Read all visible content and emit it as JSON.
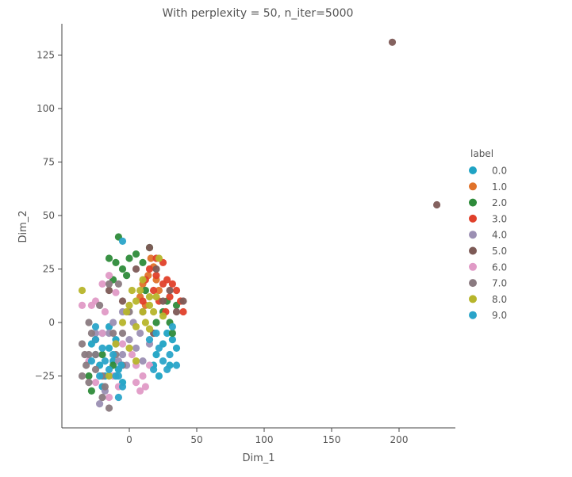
{
  "chart_data": {
    "type": "scatter",
    "title": "With perplexity = 50, n_iter=5000",
    "xlabel": "Dim_1",
    "ylabel": "Dim_2",
    "xlim": [
      -50,
      240
    ],
    "ylim": [
      -48,
      142
    ],
    "xticks": [
      0,
      50,
      100,
      150,
      200
    ],
    "yticks": [
      -25,
      0,
      25,
      50,
      75,
      100,
      125
    ],
    "grid": false,
    "legend": {
      "title": "label",
      "placement": "right"
    },
    "series": [
      {
        "name": "0.0",
        "color": "#1fa3c4",
        "points": [
          [
            -28,
            -10
          ],
          [
            -25,
            -15
          ],
          [
            -22,
            -20
          ],
          [
            -20,
            -5
          ],
          [
            -18,
            -25
          ],
          [
            -15,
            -12
          ],
          [
            -12,
            -18
          ],
          [
            -10,
            -8
          ],
          [
            -8,
            -22
          ],
          [
            -5,
            -28
          ],
          [
            -20,
            -30
          ],
          [
            -15,
            -2
          ],
          [
            20,
            -15
          ],
          [
            25,
            -10
          ],
          [
            30,
            -20
          ],
          [
            28,
            -5
          ],
          [
            35,
            -12
          ],
          [
            22,
            -25
          ],
          [
            32,
            -8
          ],
          [
            18,
            -20
          ]
        ]
      },
      {
        "name": "1.0",
        "color": "#e0722a",
        "points": [
          [
            10,
            18
          ],
          [
            14,
            22
          ],
          [
            18,
            26
          ],
          [
            22,
            15
          ],
          [
            8,
            12
          ],
          [
            16,
            30
          ],
          [
            12,
            8
          ],
          [
            20,
            20
          ]
        ]
      },
      {
        "name": "2.0",
        "color": "#2e8b3a",
        "points": [
          [
            -15,
            30
          ],
          [
            -10,
            28
          ],
          [
            -5,
            25
          ],
          [
            0,
            30
          ],
          [
            5,
            32
          ],
          [
            10,
            28
          ],
          [
            -12,
            20
          ],
          [
            -2,
            22
          ],
          [
            25,
            5
          ],
          [
            30,
            0
          ],
          [
            32,
            -5
          ],
          [
            28,
            10
          ],
          [
            15,
            35
          ],
          [
            -8,
            40
          ],
          [
            12,
            15
          ],
          [
            -28,
            -32
          ],
          [
            20,
            0
          ],
          [
            35,
            8
          ],
          [
            -20,
            -15
          ],
          [
            -30,
            -25
          ],
          [
            -12,
            -20
          ]
        ]
      },
      {
        "name": "3.0",
        "color": "#e0402a",
        "points": [
          [
            15,
            25
          ],
          [
            20,
            22
          ],
          [
            25,
            18
          ],
          [
            18,
            15
          ],
          [
            22,
            10
          ],
          [
            28,
            20
          ],
          [
            30,
            12
          ],
          [
            35,
            15
          ],
          [
            12,
            20
          ],
          [
            25,
            28
          ],
          [
            20,
            30
          ],
          [
            32,
            18
          ],
          [
            38,
            10
          ],
          [
            27,
            5
          ],
          [
            10,
            10
          ],
          [
            40,
            5
          ]
        ]
      },
      {
        "name": "4.0",
        "color": "#9b8fb3",
        "points": [
          [
            -15,
            -5
          ],
          [
            -10,
            -10
          ],
          [
            -5,
            -15
          ],
          [
            0,
            -8
          ],
          [
            5,
            -12
          ],
          [
            -8,
            -18
          ],
          [
            -2,
            -20
          ],
          [
            8,
            -5
          ],
          [
            -12,
            0
          ],
          [
            -5,
            5
          ],
          [
            3,
            0
          ],
          [
            10,
            -18
          ],
          [
            -18,
            -32
          ],
          [
            -22,
            -38
          ],
          [
            15,
            -10
          ],
          [
            -25,
            -5
          ]
        ]
      },
      {
        "name": "5.0",
        "color": "#7d5a56",
        "points": [
          [
            195,
            131
          ],
          [
            228,
            55
          ],
          [
            5,
            25
          ],
          [
            15,
            35
          ],
          [
            25,
            10
          ],
          [
            18,
            -5
          ],
          [
            30,
            15
          ],
          [
            35,
            5
          ],
          [
            -5,
            10
          ],
          [
            -25,
            -8
          ],
          [
            -15,
            15
          ],
          [
            40,
            10
          ],
          [
            20,
            25
          ],
          [
            10,
            5
          ]
        ]
      },
      {
        "name": "6.0",
        "color": "#e09ac6",
        "points": [
          [
            -20,
            18
          ],
          [
            -15,
            22
          ],
          [
            -25,
            10
          ],
          [
            -10,
            14
          ],
          [
            -18,
            5
          ],
          [
            -12,
            -25
          ],
          [
            -8,
            -30
          ],
          [
            -15,
            -35
          ],
          [
            2,
            -15
          ],
          [
            5,
            -20
          ],
          [
            10,
            -25
          ],
          [
            5,
            -28
          ],
          [
            15,
            -20
          ],
          [
            8,
            -32
          ],
          [
            -25,
            -28
          ],
          [
            -30,
            -18
          ],
          [
            -5,
            -10
          ],
          [
            -20,
            -5
          ],
          [
            -28,
            8
          ],
          [
            -35,
            8
          ],
          [
            12,
            -30
          ]
        ]
      },
      {
        "name": "7.0",
        "color": "#8a7a80",
        "points": [
          [
            -35,
            -10
          ],
          [
            -30,
            -15
          ],
          [
            -32,
            -20
          ],
          [
            -28,
            -5
          ],
          [
            -35,
            -25
          ],
          [
            -25,
            -22
          ],
          [
            -30,
            -28
          ],
          [
            -20,
            -35
          ],
          [
            -15,
            -40
          ],
          [
            -10,
            -15
          ],
          [
            -5,
            -20
          ],
          [
            -20,
            -25
          ],
          [
            -12,
            -5
          ],
          [
            -8,
            18
          ],
          [
            -15,
            18
          ],
          [
            -22,
            8
          ],
          [
            -30,
            0
          ],
          [
            -33,
            -15
          ],
          [
            -18,
            -30
          ],
          [
            -25,
            -15
          ],
          [
            -5,
            -5
          ],
          [
            0,
            5
          ]
        ]
      },
      {
        "name": "8.0",
        "color": "#b7b52b",
        "points": [
          [
            0,
            8
          ],
          [
            5,
            10
          ],
          [
            10,
            5
          ],
          [
            15,
            8
          ],
          [
            8,
            15
          ],
          [
            12,
            0
          ],
          [
            18,
            5
          ],
          [
            5,
            -2
          ],
          [
            -5,
            0
          ],
          [
            20,
            12
          ],
          [
            10,
            20
          ],
          [
            2,
            15
          ],
          [
            -2,
            5
          ],
          [
            15,
            -3
          ],
          [
            25,
            3
          ],
          [
            -10,
            -10
          ],
          [
            5,
            -18
          ],
          [
            -15,
            -25
          ],
          [
            0,
            -12
          ],
          [
            22,
            30
          ],
          [
            -35,
            15
          ],
          [
            15,
            12
          ]
        ]
      },
      {
        "name": "9.0",
        "color": "#2aa4c9",
        "points": [
          [
            -25,
            -8
          ],
          [
            -20,
            -12
          ],
          [
            -18,
            -18
          ],
          [
            -15,
            -22
          ],
          [
            -10,
            -25
          ],
          [
            -5,
            -30
          ],
          [
            -8,
            -35
          ],
          [
            -12,
            -15
          ],
          [
            -22,
            -25
          ],
          [
            -28,
            -18
          ],
          [
            -6,
            -20
          ],
          [
            20,
            -5
          ],
          [
            25,
            -18
          ],
          [
            30,
            -15
          ],
          [
            28,
            -22
          ],
          [
            35,
            -20
          ],
          [
            15,
            -8
          ],
          [
            22,
            -12
          ],
          [
            18,
            -22
          ],
          [
            32,
            -2
          ],
          [
            -5,
            38
          ],
          [
            -25,
            -2
          ],
          [
            -8,
            -25
          ]
        ]
      }
    ]
  }
}
